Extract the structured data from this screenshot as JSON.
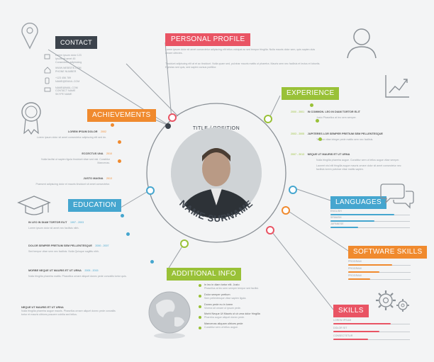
{
  "center": {
    "title": "TITLE / POSITION",
    "name": "NAME SURNAME"
  },
  "colors": {
    "red": "#e95464",
    "green": "#99c137",
    "orange": "#f08a2e",
    "blue": "#45a6cf",
    "dark": "#3c434c"
  },
  "contact": {
    "label": "CONTACT",
    "lines": [
      "Lorem ipsum dolor 123",
      "Ipsum sit amet 45",
      "Consectetur adipisicing",
      "WWW.WEBSITE.COM",
      "PHONE NUMBER",
      "+123 456 789",
      "NAME@EMAIL.COM",
      "NAME@MAIL.COM",
      "CONTACT NAME",
      "SKYPE NAME"
    ]
  },
  "profile": {
    "label": "PERSONAL PROFILE",
    "p1": "Lorem ipsum dolor sit amet consectetur adipiscing elit tellus volutpat ac sed tempor fringilla. Nulla mauris dolor sem, quis sapien duis ornare ultricies.",
    "p2": "Tincidunt adipiscing elit at et ac tincidunt. Nulla quam sed, pulvinar mauris mattis ut pharetra. Mauris sem nec facilisis et lectus et lobortis. Egestas sed quis, sed sapien cursus porttitor."
  },
  "achievements": {
    "label": "ACHIEVEMENTS",
    "items": [
      {
        "title": "LOREM IPSUM DOLOR",
        "year": "2002",
        "text": "Lorem ipsum dolor sit amet consectetur adipiscing elit sed do."
      },
      {
        "title": "ECCECTUS UNA",
        "year": "2010",
        "text": "Nulla facilisi ut sapien ligula tincidunt vitae sed nisl. Curabitur Maecenas."
      },
      {
        "title": "JUSTO MAGNA",
        "year": "2013",
        "text": "Praesent adipiscing dolor et mauris tincidunt sit amet consectetur."
      }
    ]
  },
  "education": {
    "label": "EDUCATION",
    "items": [
      {
        "title": "IN LEO IN DIAM TORTOR ELIT",
        "year": "1997 - 2003",
        "text": "Lorem ipsum dolor sit amet nec facilisis nibh."
      },
      {
        "title": "DOLOR SEMPER PRETIUM SEM PELLENTESQUE",
        "year": "2000 - 2007",
        "text": "Sed tempor vitae sem nec facilisis. Nulla Quisque sagittis nibh."
      },
      {
        "title": "MORBE NEQUE UT MAURIS ET UT URNA",
        "year": "2005 - 2015",
        "text": "Nulla fringilla pharetra mattis. Phasellus ornare aliquet donec pede convallis tortor quis."
      }
    ]
  },
  "experience": {
    "label": "EXPERIENCE",
    "items": [
      {
        "year": "2000 - 2001",
        "title": "IN COMMON. LEO IN DIAM TORTOR ELIT",
        "text": "Justo Phasellus at leo sem semper."
      },
      {
        "year": "2003 - 2005",
        "title": "JUPITERES LOR SEMPER PRETIUM SEM PELLENTESQUE",
        "text": "Tempor vitae integer pede mattis sem nec facilisis."
      },
      {
        "year": "2007 - 2013",
        "title": "NEQUE UT MAURIS ET UT URNA",
        "text": "Nulla fringilla pharetra augue. Curabitur sem ut tellus augue vitae semper."
      }
    ],
    "extra": "Laoreet nisl elit fringilla augue mauris ornare dolor sit amet consectetur nec facilisis lorem pulvinar vitae mattis sapien."
  },
  "languages": {
    "label": "LANGUAGES",
    "items": [
      {
        "name": "ENGLISH",
        "level": 0.8
      },
      {
        "name": "SPANISH",
        "level": 0.55
      },
      {
        "name": "JAPANESE",
        "level": 0.35
      }
    ]
  },
  "software": {
    "label": "SOFTWARE SKILLS",
    "items": [
      {
        "name": "PROGRAM",
        "level": 0.7
      },
      {
        "name": "PROGRAM",
        "level": 0.5
      },
      {
        "name": "PROGRAM",
        "level": 0.35
      }
    ]
  },
  "skills": {
    "label": "SKILLS",
    "items": [
      {
        "name": "LOREM IPSUM",
        "level": 0.75
      },
      {
        "name": "DOLOR SIT",
        "level": 0.6
      },
      {
        "name": "CONSECTETUR",
        "level": 0.45
      }
    ]
  },
  "additional": {
    "label": "ADDITIONAL INFO",
    "items": [
      {
        "title": "In leo in diam tortor elit. Justo",
        "text": "Phasellus at leo sem semper tempor sed facilisi."
      },
      {
        "title": "Dolor semper pretium",
        "text": "Sem pellentesque vitae sapien ligula."
      },
      {
        "title": "Donec pede eu in lorem",
        "text": "Viverra sit ornare ut ipsum pede."
      },
      {
        "title": "Morbi Neque Ut Mauris ut ut urna dolor fringilla",
        "text": "Pharetra augue aliquet donec pede."
      },
      {
        "title": "Maecenas aliquam ultrices pede",
        "text": "Curabitur sem ut tellus augue."
      }
    ]
  },
  "bottom_left": {
    "title": "NEQUE UT MAURIS ET UT URNA",
    "text": "Nulla fringilla pharetra augue mauris. Phasellus ornare aliquet donec pede convallis tortor et mauris ultrices posuere cubilia sed tellus."
  }
}
